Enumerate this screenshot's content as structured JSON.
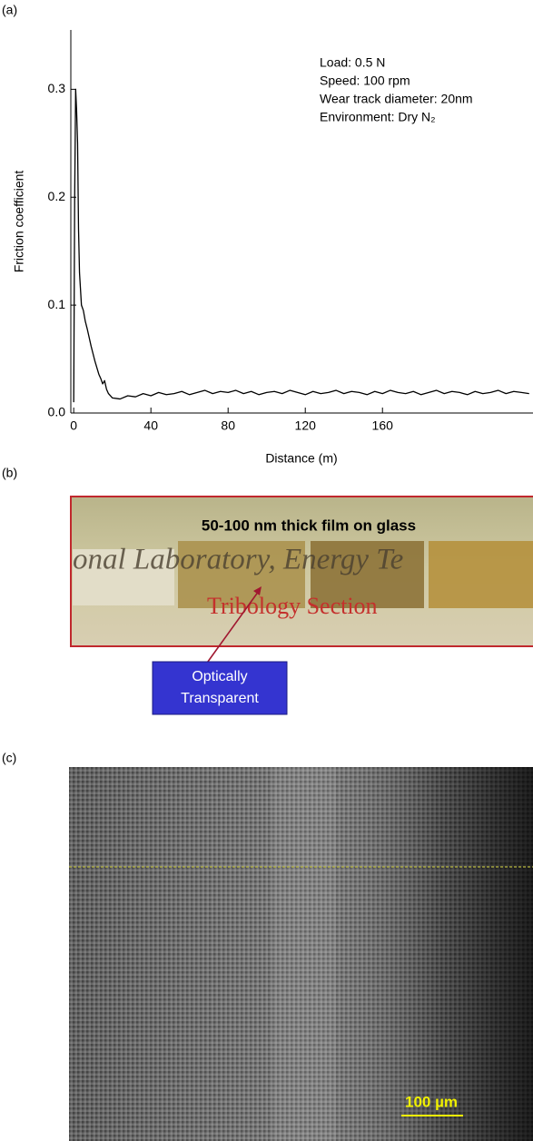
{
  "panels": [
    "(a)",
    "(b)",
    "(c)"
  ],
  "chart_data": {
    "type": "line",
    "y_label": "Friction coefficient",
    "x_label": "Distance (m)",
    "annotations": [
      "Load: 0.5 N",
      "Speed: 100 rpm",
      "Wear track diameter: 20nm",
      "Environment: Dry N₂"
    ],
    "x": [
      0,
      0.5,
      1,
      1.5,
      2,
      2.5,
      3,
      4,
      5,
      6,
      7,
      8,
      9,
      10,
      11,
      12,
      13,
      14,
      15,
      16,
      17,
      18,
      19,
      20,
      24,
      28,
      32,
      36,
      40,
      44,
      48,
      52,
      56,
      60,
      64,
      68,
      72,
      76,
      80,
      84,
      88,
      92,
      96,
      100,
      104,
      108,
      112,
      116,
      120,
      124,
      128,
      132,
      136,
      140,
      144,
      148,
      152,
      156,
      160,
      164,
      168,
      172,
      176,
      180,
      184,
      188,
      192,
      196,
      200,
      204,
      208,
      212,
      216,
      220,
      224,
      228,
      232,
      236
    ],
    "series": [
      {
        "color": "#000000",
        "values": [
          0.01,
          0.2,
          0.3,
          0.28,
          0.25,
          0.17,
          0.13,
          0.1,
          0.095,
          0.085,
          0.078,
          0.07,
          0.062,
          0.055,
          0.048,
          0.042,
          0.036,
          0.032,
          0.027,
          0.03,
          0.022,
          0.018,
          0.016,
          0.014,
          0.013,
          0.016,
          0.015,
          0.018,
          0.016,
          0.019,
          0.017,
          0.018,
          0.02,
          0.017,
          0.019,
          0.021,
          0.018,
          0.02,
          0.019,
          0.021,
          0.018,
          0.02,
          0.017,
          0.019,
          0.02,
          0.018,
          0.021,
          0.019,
          0.017,
          0.02,
          0.018,
          0.019,
          0.021,
          0.018,
          0.02,
          0.019,
          0.017,
          0.02,
          0.018,
          0.021,
          0.019,
          0.018,
          0.02,
          0.017,
          0.019,
          0.021,
          0.018,
          0.02,
          0.019,
          0.017,
          0.02,
          0.018,
          0.019,
          0.021,
          0.018,
          0.02,
          0.019,
          0.018
        ]
      }
    ],
    "xlim": [
      -1.5,
      238
    ],
    "ylim": [
      0,
      0.355
    ],
    "xticks": [
      0,
      40,
      80,
      120,
      160
    ],
    "yticks": [
      {
        "value": 0,
        "label": "0.0"
      },
      0.1,
      0.2,
      0.3
    ]
  },
  "photo": {
    "title": "50-100 nm thick film on glass",
    "background_text": [
      "onal Laboratory, Energy Te",
      "Tribology Section"
    ],
    "callout": [
      "Optically",
      "Transparent"
    ]
  },
  "micrograph": {
    "scale_bar": "100 µm"
  }
}
